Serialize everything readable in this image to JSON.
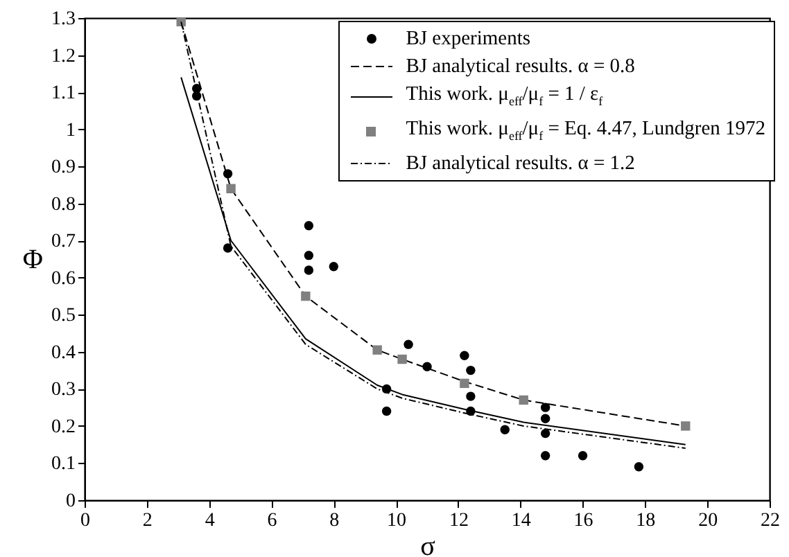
{
  "chart_data": {
    "type": "line",
    "xlabel": "σ",
    "ylabel": "Φ",
    "xlim": [
      0,
      22
    ],
    "xticks": [
      0,
      2,
      4,
      6,
      8,
      10,
      12,
      14,
      16,
      18,
      20,
      22
    ],
    "ylim": [
      0,
      1.3
    ],
    "yticks": [
      0,
      0.1,
      0.2,
      0.3,
      0.4,
      0.5,
      0.6,
      0.7,
      0.8,
      0.9,
      1,
      1.1,
      1.2,
      1.3
    ],
    "grid": false,
    "legend": "top right",
    "series": [
      {
        "name": "BJ experiments",
        "type": "scatter",
        "marker": "circle",
        "color": "#000000",
        "x": [
          3.6,
          3.6,
          4.6,
          4.6,
          7.2,
          7.2,
          7.2,
          8,
          9.7,
          9.7,
          10.4,
          11.0,
          12.2,
          12.4,
          12.4,
          12.4,
          13.5,
          14.8,
          14.8,
          14.8,
          14.8,
          16.0,
          17.8
        ],
        "values": [
          1.11,
          1.09,
          0.88,
          0.68,
          0.74,
          0.66,
          0.62,
          0.63,
          0.3,
          0.24,
          0.42,
          0.36,
          0.39,
          0.35,
          0.28,
          0.24,
          0.19,
          0.25,
          0.22,
          0.18,
          0.12,
          0.12,
          0.09
        ]
      },
      {
        "name": "BJ analytical results. α = 0.8",
        "type": "line",
        "line_style": "dashed",
        "marker": "none",
        "color": "#000000",
        "x": [
          3.1,
          4.7,
          7.1,
          9.4,
          10.2,
          12.2,
          14.1,
          19.3
        ],
        "values": [
          1.29,
          0.84,
          0.55,
          0.405,
          0.38,
          0.32,
          0.27,
          0.2
        ]
      },
      {
        "name": "This work. μ$_{eff}$/μ$_{f}$ = 1 / ε$_{f}$",
        "type": "line",
        "line_style": "solid",
        "marker": "none",
        "color": "#000000",
        "x": [
          3.1,
          4.7,
          7.1,
          9.4,
          10.2,
          12.2,
          14.1,
          19.3
        ],
        "values": [
          1.14,
          0.7,
          0.435,
          0.31,
          0.285,
          0.245,
          0.21,
          0.15
        ]
      },
      {
        "name": "This work. μ$_{eff}$/μ$_{f}$ = Eq. 4.47, Lundgren 1972",
        "type": "scatter",
        "marker": "square",
        "color": "#808080",
        "x": [
          3.1,
          4.7,
          7.1,
          9.4,
          10.2,
          12.2,
          14.1,
          19.3
        ],
        "values": [
          1.29,
          0.84,
          0.55,
          0.405,
          0.38,
          0.315,
          0.27,
          0.2
        ]
      },
      {
        "name": "BJ analytical results. α = 1.2",
        "type": "line",
        "line_style": "dotted",
        "marker": "none",
        "color": "#000000",
        "x": [
          3.1,
          4.7,
          7.1,
          9.4,
          10.2,
          12.2,
          14.1,
          19.3
        ],
        "values": [
          1.29,
          0.685,
          0.42,
          0.3,
          0.275,
          0.235,
          0.2,
          0.14
        ]
      }
    ]
  }
}
